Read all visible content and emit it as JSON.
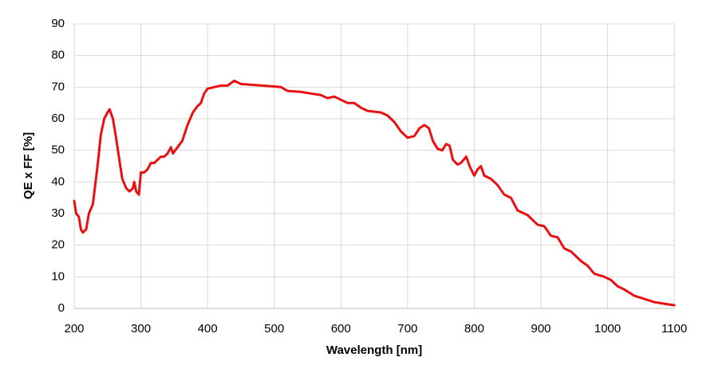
{
  "chart_data": {
    "type": "line",
    "x_label": "Wavelength [nm]",
    "y_label": "QE x FF [%]",
    "x": [
      200,
      203,
      207,
      210,
      213,
      218,
      222,
      228,
      235,
      240,
      245,
      250,
      253,
      258,
      262,
      267,
      272,
      278,
      283,
      288,
      290,
      293,
      297,
      300,
      305,
      310,
      315,
      320,
      325,
      330,
      335,
      340,
      345,
      348,
      355,
      362,
      370,
      378,
      385,
      390,
      395,
      400,
      410,
      420,
      430,
      440,
      450,
      470,
      500,
      510,
      520,
      540,
      555,
      570,
      580,
      590,
      600,
      610,
      620,
      630,
      640,
      660,
      670,
      680,
      690,
      700,
      710,
      718,
      725,
      732,
      738,
      745,
      752,
      758,
      763,
      768,
      775,
      780,
      788,
      793,
      800,
      805,
      810,
      815,
      825,
      835,
      845,
      855,
      865,
      880,
      895,
      905,
      915,
      925,
      935,
      945,
      960,
      970,
      980,
      995,
      1005,
      1015,
      1025,
      1040,
      1055,
      1070,
      1085,
      1100
    ],
    "series": [
      {
        "name": "QE x FF",
        "color": "#e81010",
        "values": [
          34,
          30,
          29,
          25,
          24,
          25,
          30,
          33,
          45,
          55,
          60,
          62,
          63,
          60,
          55,
          48,
          41,
          38,
          37,
          38,
          40,
          37,
          36,
          43,
          43,
          44,
          46,
          46,
          47,
          48,
          48,
          49,
          51,
          49,
          51,
          53,
          58,
          62,
          64,
          65,
          68,
          69.5,
          70,
          70.5,
          70.5,
          72,
          71,
          70.7,
          70.2,
          70,
          68.8,
          68.5,
          68,
          67.5,
          66.5,
          67,
          66,
          65,
          65,
          63.5,
          62.5,
          62,
          61,
          59,
          56,
          54,
          54.5,
          57,
          58,
          57,
          53,
          50.5,
          50,
          52,
          51.5,
          47,
          45.5,
          46,
          48,
          45,
          42,
          44,
          45,
          42,
          41,
          39,
          36,
          35,
          31,
          29.5,
          26.5,
          26,
          23,
          22.5,
          19,
          18,
          15,
          13.5,
          11,
          10,
          9,
          7,
          6,
          4,
          3,
          2,
          1.5,
          1
        ]
      }
    ],
    "xlim": [
      200,
      1100
    ],
    "xticks": [
      200,
      300,
      400,
      500,
      600,
      700,
      800,
      900,
      1000,
      1100
    ],
    "ylim": [
      0,
      90
    ],
    "yticks": [
      0,
      10,
      20,
      30,
      40,
      50,
      60,
      70,
      80,
      90
    ],
    "grid": true
  }
}
